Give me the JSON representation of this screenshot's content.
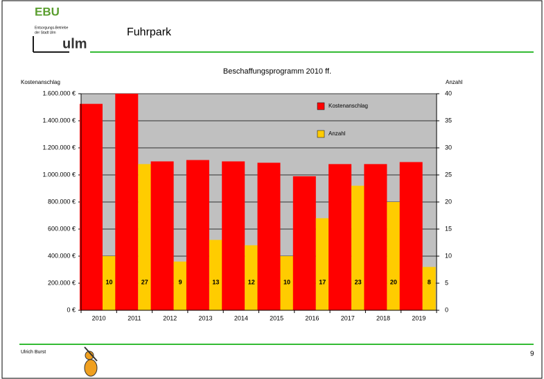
{
  "header": {
    "logo_mark": "EBU",
    "logo_line1": "Entsorgungs-Betriebe",
    "logo_line2": "der Stadt Ulm",
    "logo_city": "ulm",
    "title": "Fuhrpark"
  },
  "footer": {
    "author": "Ulrich Burst",
    "page": "9"
  },
  "chart_data": {
    "type": "bar",
    "title": "Beschaffungsprogramm 2010 ff.",
    "y_label": "Kostenanschlag",
    "y2_label": "Anzahl",
    "categories": [
      "2010",
      "2011",
      "2012",
      "2013",
      "2014",
      "2015",
      "2016",
      "2017",
      "2018",
      "2019"
    ],
    "series": [
      {
        "name": "Kostenanschlag",
        "color": "#ff0000",
        "values": [
          1525000,
          1600000,
          1100000,
          1110000,
          1100000,
          1090000,
          990000,
          1080000,
          1080000,
          1095000
        ]
      },
      {
        "name": "Anzahl",
        "color": "#ffcc00",
        "axis": "y2",
        "values": [
          10,
          27,
          9,
          13,
          12,
          10,
          17,
          23,
          20,
          8
        ]
      }
    ],
    "ylim": [
      0,
      1600000
    ],
    "yticks": [
      {
        "value": 0,
        "label": "0 €"
      },
      {
        "value": 200000,
        "label": "200.000 €"
      },
      {
        "value": 400000,
        "label": "400.000 €"
      },
      {
        "value": 600000,
        "label": "600.000 €"
      },
      {
        "value": 800000,
        "label": "800.000 €"
      },
      {
        "value": 1000000,
        "label": "1.000.000 €"
      },
      {
        "value": 1200000,
        "label": "1.200.000 €"
      },
      {
        "value": 1400000,
        "label": "1.400.000 €"
      },
      {
        "value": 1600000,
        "label": "1.600.000 €"
      }
    ],
    "y2lim": [
      0,
      40
    ],
    "y2ticks": [
      0,
      5,
      10,
      15,
      20,
      25,
      30,
      35,
      40
    ],
    "grid": true,
    "legend": "upper right",
    "plot_background": "#c0c0c0"
  }
}
